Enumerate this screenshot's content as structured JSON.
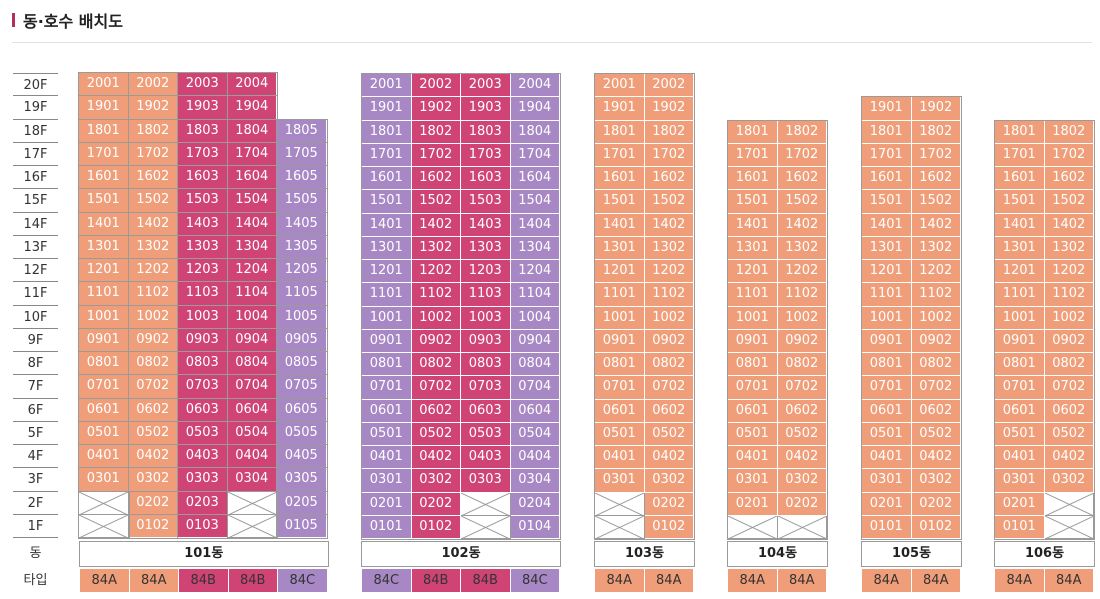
{
  "page": {
    "title": "동·호수 배치도"
  },
  "labels": {
    "dong": "동",
    "type": "타입"
  },
  "colors": {
    "84A": "#ef9e79",
    "84B": "#cf4474",
    "84C": "#a788c4",
    "accent": "#b0315b"
  },
  "floors": [
    "20F",
    "19F",
    "18F",
    "17F",
    "16F",
    "15F",
    "14F",
    "13F",
    "12F",
    "11F",
    "10F",
    "9F",
    "8F",
    "7F",
    "6F",
    "5F",
    "4F",
    "3F",
    "2F",
    "1F"
  ],
  "buildings": [
    {
      "name": "101동",
      "lines": [
        "01",
        "02",
        "03",
        "04",
        "05"
      ],
      "types": [
        "84A",
        "84A",
        "84B",
        "84B",
        "84C"
      ],
      "top_floors": [
        20,
        20,
        20,
        20,
        18
      ],
      "missing": {
        "1": [
          1,
          4
        ],
        "2": [
          1,
          4
        ]
      }
    },
    {
      "name": "102동",
      "lines": [
        "01",
        "02",
        "03",
        "04"
      ],
      "types": [
        "84C",
        "84B",
        "84B",
        "84C"
      ],
      "top_floors": [
        20,
        20,
        20,
        20
      ],
      "missing": {
        "1": [
          3
        ],
        "2": [
          3
        ]
      }
    },
    {
      "name": "103동",
      "lines": [
        "01",
        "02"
      ],
      "types": [
        "84A",
        "84A"
      ],
      "top_floors": [
        20,
        20
      ],
      "missing": {
        "1": [
          1
        ],
        "2": [
          1
        ]
      }
    },
    {
      "name": "104동",
      "lines": [
        "01",
        "02"
      ],
      "types": [
        "84A",
        "84A"
      ],
      "top_floors": [
        18,
        18
      ],
      "missing": {
        "1": [
          1,
          2
        ]
      }
    },
    {
      "name": "105동",
      "lines": [
        "01",
        "02"
      ],
      "types": [
        "84A",
        "84A"
      ],
      "top_floors": [
        19,
        19
      ],
      "missing": {}
    },
    {
      "name": "106동",
      "lines": [
        "01",
        "02"
      ],
      "types": [
        "84A",
        "84A"
      ],
      "top_floors": [
        18,
        18
      ],
      "missing": {
        "1": [
          2
        ],
        "2": [
          2
        ]
      }
    }
  ]
}
